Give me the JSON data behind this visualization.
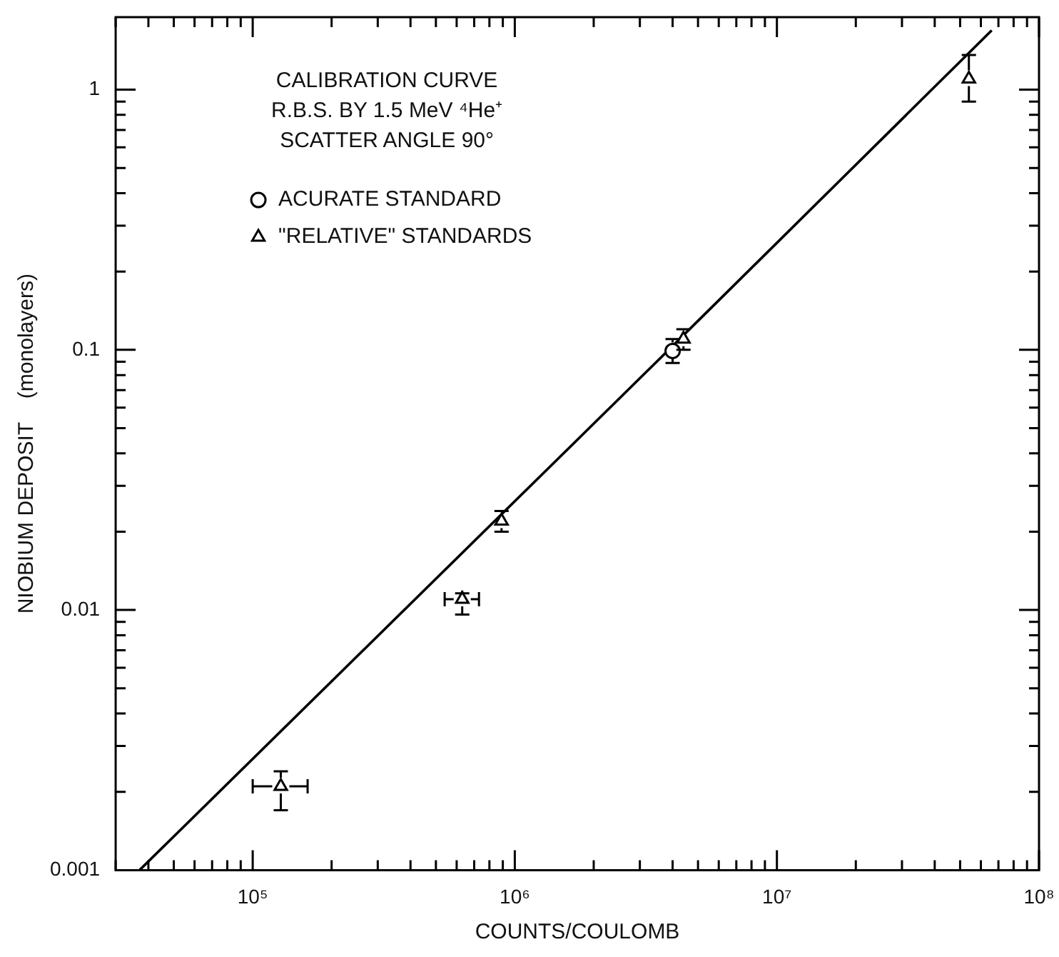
{
  "chart_data": {
    "type": "scatter",
    "xlabel": "COUNTS/COULOMB",
    "ylabel": "NIOBIUM DEPOSIT    (monolayers)",
    "annotations": [
      "CALIBRATION CURVE",
      "R.B.S. BY 1.5 MeV ⁴He⁺",
      "SCATTER ANGLE 90°"
    ],
    "log": "xy",
    "xlim": [
      30000,
      100000000
    ],
    "ylim": [
      0.001,
      1.9
    ],
    "xticks": [
      {
        "value": 30000,
        "label": null
      },
      {
        "value": 40000,
        "label": null
      },
      {
        "value": 50000,
        "label": null
      },
      {
        "value": 60000,
        "label": null
      },
      {
        "value": 70000,
        "label": null
      },
      {
        "value": 80000,
        "label": null
      },
      {
        "value": 90000,
        "label": null
      },
      {
        "value": 100000,
        "label": "10⁵"
      },
      {
        "value": 200000,
        "label": null
      },
      {
        "value": 300000,
        "label": null
      },
      {
        "value": 400000,
        "label": null
      },
      {
        "value": 500000,
        "label": null
      },
      {
        "value": 600000,
        "label": null
      },
      {
        "value": 700000,
        "label": null
      },
      {
        "value": 800000,
        "label": null
      },
      {
        "value": 900000,
        "label": null
      },
      {
        "value": 1000000,
        "label": "10⁶"
      },
      {
        "value": 2000000,
        "label": null
      },
      {
        "value": 3000000,
        "label": null
      },
      {
        "value": 4000000,
        "label": null
      },
      {
        "value": 5000000,
        "label": null
      },
      {
        "value": 6000000,
        "label": null
      },
      {
        "value": 7000000,
        "label": null
      },
      {
        "value": 8000000,
        "label": null
      },
      {
        "value": 9000000,
        "label": null
      },
      {
        "value": 10000000,
        "label": "10⁷"
      },
      {
        "value": 20000000,
        "label": null
      },
      {
        "value": 30000000,
        "label": null
      },
      {
        "value": 40000000,
        "label": null
      },
      {
        "value": 50000000,
        "label": null
      },
      {
        "value": 60000000,
        "label": null
      },
      {
        "value": 70000000,
        "label": null
      },
      {
        "value": 80000000,
        "label": null
      },
      {
        "value": 90000000,
        "label": null
      },
      {
        "value": 100000000,
        "label": "10⁸"
      }
    ],
    "yticks": [
      0.001,
      {
        "value": 0.002,
        "label": null
      },
      {
        "value": 0.003,
        "label": null
      },
      {
        "value": 0.004,
        "label": null
      },
      {
        "value": 0.005,
        "label": null
      },
      {
        "value": 0.006,
        "label": null
      },
      {
        "value": 0.007,
        "label": null
      },
      {
        "value": 0.008,
        "label": null
      },
      {
        "value": 0.009,
        "label": null
      },
      0.01,
      {
        "value": 0.02,
        "label": null
      },
      {
        "value": 0.03,
        "label": null
      },
      {
        "value": 0.04,
        "label": null
      },
      {
        "value": 0.05,
        "label": null
      },
      {
        "value": 0.06,
        "label": null
      },
      {
        "value": 0.07,
        "label": null
      },
      {
        "value": 0.08,
        "label": null
      },
      {
        "value": 0.09,
        "label": null
      },
      0.1,
      {
        "value": 0.2,
        "label": null
      },
      {
        "value": 0.3,
        "label": null
      },
      {
        "value": 0.4,
        "label": null
      },
      {
        "value": 0.5,
        "label": null
      },
      {
        "value": 0.6,
        "label": null
      },
      {
        "value": 0.7,
        "label": null
      },
      {
        "value": 0.8,
        "label": null
      },
      {
        "value": 0.9,
        "label": null
      },
      1
    ],
    "grid": false,
    "legend": "top left",
    "series": [
      {
        "name": "ACURATE STANDARD",
        "marker": "circle",
        "color": "#000000",
        "x": [
          4000000
        ],
        "values": [
          0.099
        ],
        "errors": [
          [
            0.089,
            0.11
          ]
        ]
      },
      {
        "name": "\"RELATIVE\" STANDARDS",
        "marker": "triangle",
        "color": "#000000",
        "x": [
          128000,
          630000,
          890000,
          4400000,
          54000000
        ],
        "values": [
          0.0021,
          0.011,
          0.022,
          0.11,
          1.1
        ],
        "errors": [
          [
            0.0017,
            0.0024
          ],
          [
            0.0096,
            0.0116
          ],
          [
            0.02,
            0.024
          ],
          [
            0.1,
            0.12
          ],
          [
            0.9,
            1.36
          ]
        ],
        "xerrors": [
          [
            100000,
            162000
          ],
          [
            540000,
            730000
          ],
          null,
          null,
          null
        ]
      },
      {
        "type": "line",
        "color": "#000000",
        "x": [
          37000,
          3400000,
          66000000
        ],
        "values": [
          0.001,
          0.088,
          1.69
        ]
      }
    ]
  }
}
